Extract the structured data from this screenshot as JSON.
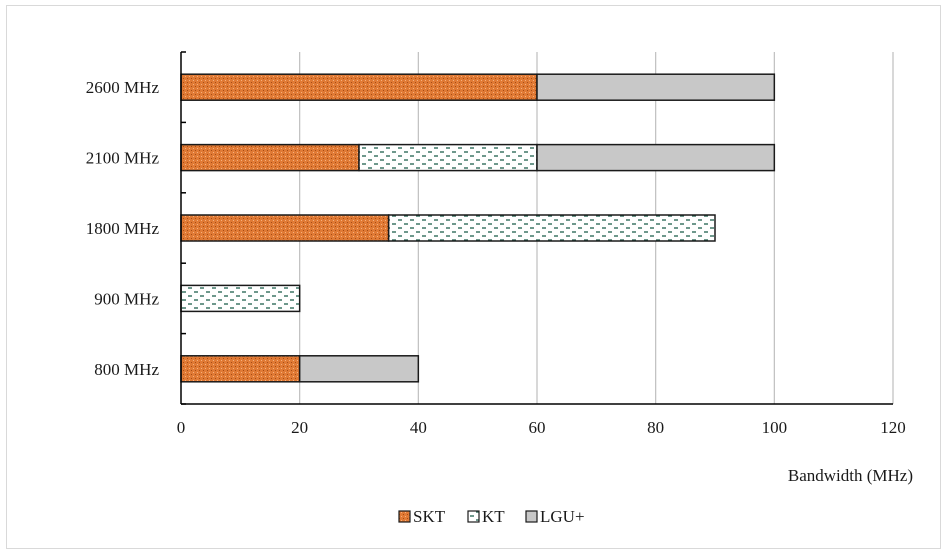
{
  "chart_data": {
    "type": "bar",
    "orientation": "horizontal",
    "stacked": true,
    "title": "",
    "xlabel": "Bandwidth (MHz)",
    "ylabel": "",
    "xlim": [
      0,
      120
    ],
    "xticks": [
      0,
      20,
      40,
      60,
      80,
      100,
      120
    ],
    "grid": "vertical",
    "legend_position": "bottom",
    "categories": [
      "2600 MHz",
      "2100 MHz",
      "1800 MHz",
      "900 MHz",
      "800 MHz"
    ],
    "series": [
      {
        "name": "SKT",
        "values": [
          60,
          30,
          35,
          0,
          20
        ],
        "color": "#e07a35",
        "pattern": "dots"
      },
      {
        "name": "KT",
        "values": [
          0,
          30,
          55,
          20,
          0
        ],
        "color": "#ffffff",
        "pattern": "dashes"
      },
      {
        "name": "LGU+",
        "values": [
          40,
          40,
          0,
          0,
          20
        ],
        "color": "#c8c8c8",
        "pattern": "solid"
      }
    ]
  }
}
